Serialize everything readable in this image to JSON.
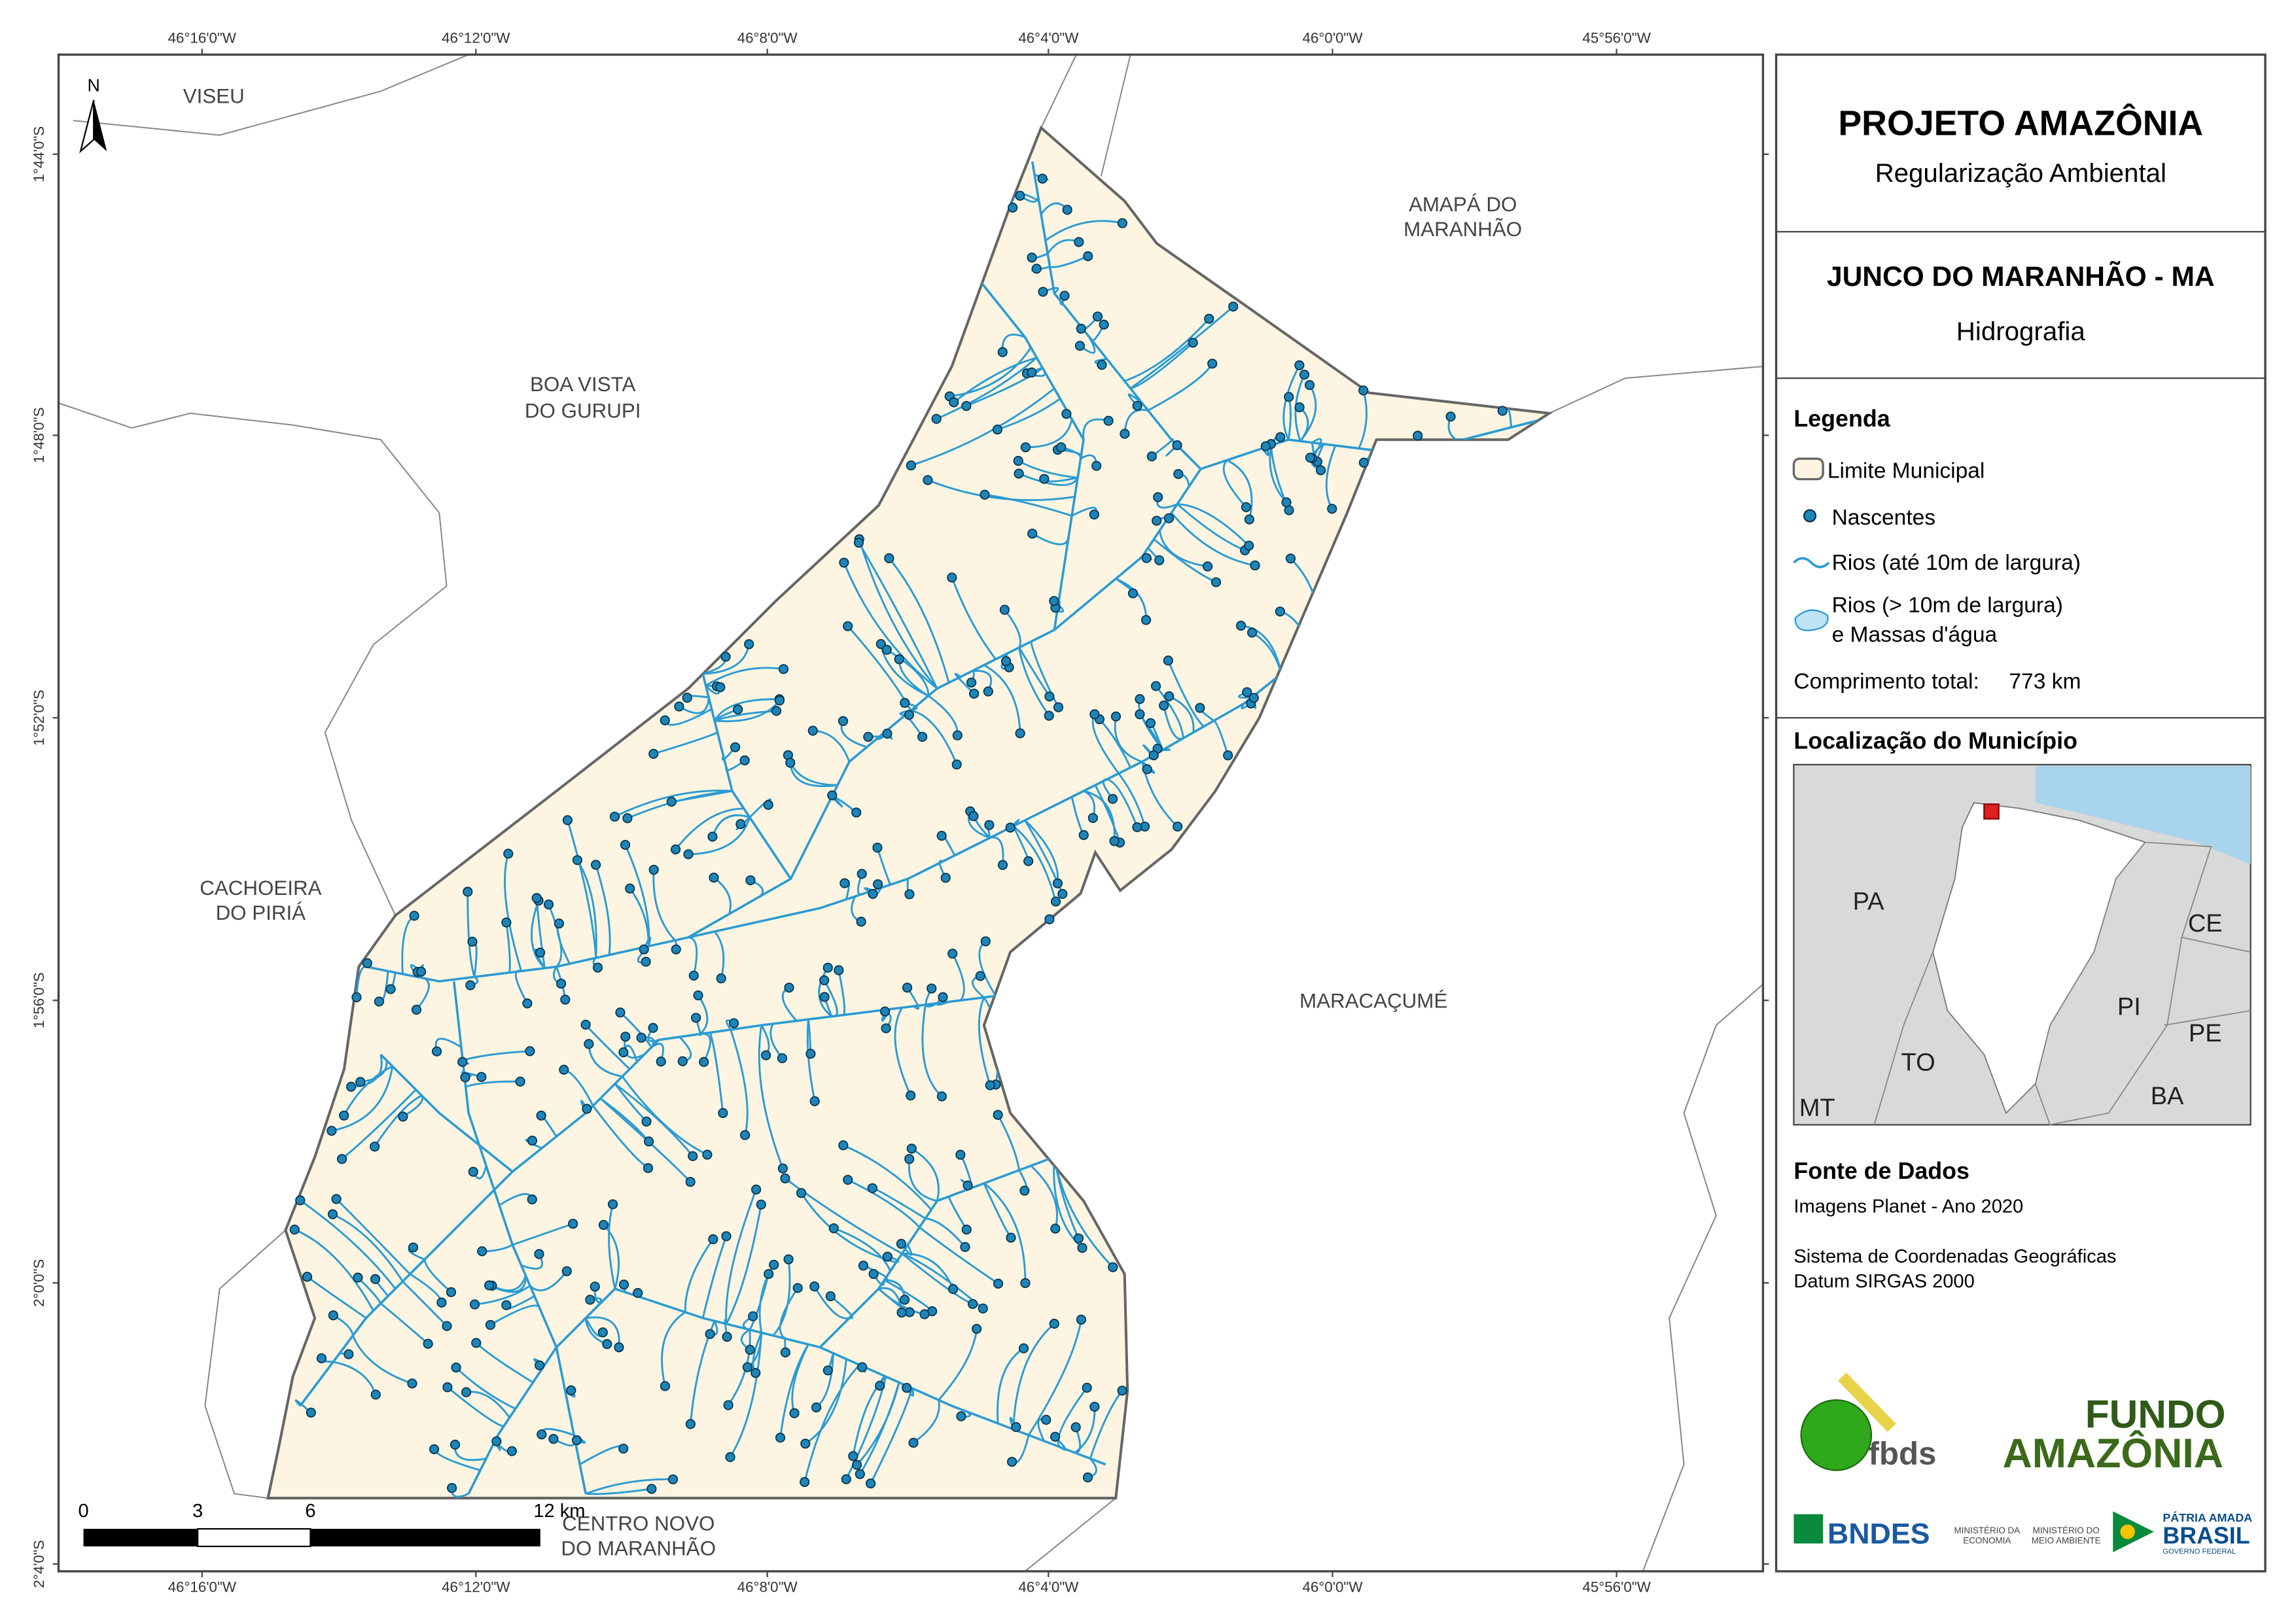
{
  "map": {
    "north": "N",
    "top_ticks": [
      "46°16'0\"W",
      "46°12'0\"W",
      "46°8'0\"W",
      "46°4'0\"W",
      "46°0'0\"W",
      "45°56'0\"W"
    ],
    "bottom_ticks": [
      "46°16'0\"W",
      "46°12'0\"W",
      "46°8'0\"W",
      "46°4'0\"W",
      "46°0'0\"W",
      "45°56'0\"W"
    ],
    "left_ticks": [
      "1°44'0\"S",
      "1°48'0\"S",
      "1°52'0\"S",
      "1°56'0\"S",
      "2°0'0\"S",
      "2°4'0\"S"
    ],
    "places": [
      {
        "lines": [
          "VISEU"
        ]
      },
      {
        "lines": [
          "AMAPÁ DO",
          "MARANHÃO"
        ]
      },
      {
        "lines": [
          "BOA VISTA",
          "DO GURUPI"
        ]
      },
      {
        "lines": [
          "CACHOEIRA",
          "DO PIRIÁ"
        ]
      },
      {
        "lines": [
          "MARACAÇUMÉ"
        ]
      },
      {
        "lines": [
          "CENTRO NOVO",
          "DO MARANHÃO"
        ]
      }
    ],
    "scale_labels": [
      "0",
      "3",
      "6",
      "12 km"
    ]
  },
  "panel": {
    "title": "PROJETO AMAZÔNIA",
    "subtitle": "Regularização Ambiental",
    "municipality": "JUNCO DO MARANHÃO - MA",
    "theme": "Hidrografia",
    "legend": {
      "title": "Legenda",
      "items": [
        [
          "Limite Municipal"
        ],
        [
          "Nascentes"
        ],
        [
          "Rios (até 10m de largura)"
        ],
        [
          "Rios (> 10m de largura)",
          "e Massas d'água"
        ]
      ],
      "total_label": "Comprimento total:",
      "total_value": "773 km"
    },
    "location": {
      "title": "Localização do Município",
      "labels": [
        "PA",
        "CE",
        "PI",
        "TO",
        "PE",
        "BA",
        "MT"
      ]
    },
    "sources": {
      "title": "Fonte de Dados",
      "lines": [
        "Imagens Planet - Ano 2020",
        "Sistema de Coordenadas Geográficas",
        "Datum SIRGAS 2000"
      ]
    },
    "logos": {
      "fbds": "fbds",
      "fundo": [
        "FUNDO",
        "AMAZÔNIA"
      ],
      "bndes": "BNDES",
      "min1": [
        "MINISTÉRIO DA",
        "ECONOMIA"
      ],
      "min2": [
        "MINISTÉRIO DO",
        "MEIO AMBIENTE"
      ],
      "brasil": [
        "PÁTRIA AMADA",
        "BRASIL",
        "GOVERNO FEDERAL"
      ]
    }
  }
}
